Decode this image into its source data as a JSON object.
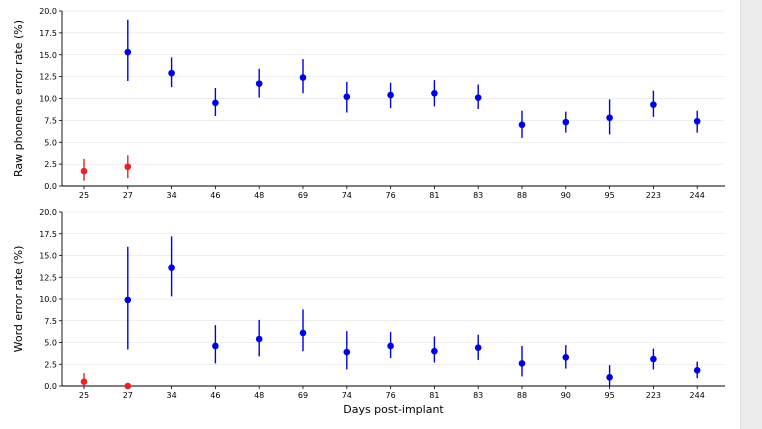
{
  "chart_data": [
    {
      "type": "scatter",
      "ylabel": "Raw phoneme error rate (%)",
      "xlabel": "",
      "ylim": [
        0,
        20
      ],
      "yticks": [
        "0.0",
        "2.5",
        "5.0",
        "7.5",
        "10.0",
        "12.5",
        "15.0",
        "17.5",
        "20.0"
      ],
      "grid": "horizontal",
      "categories": [
        "25",
        "27",
        "34",
        "46",
        "48",
        "69",
        "74",
        "76",
        "81",
        "83",
        "88",
        "90",
        "95",
        "223",
        "244"
      ],
      "series": [
        {
          "color": "#e8202a",
          "points": [
            {
              "x": "25",
              "y": 1.7,
              "low": 0.6,
              "high": 3.1
            },
            {
              "x": "27",
              "y": 2.2,
              "low": 0.9,
              "high": 3.5
            }
          ]
        },
        {
          "color": "#0000e6",
          "points": [
            {
              "x": "27",
              "y": 15.3,
              "low": 12.0,
              "high": 19.0
            },
            {
              "x": "34",
              "y": 12.9,
              "low": 11.3,
              "high": 14.7
            },
            {
              "x": "46",
              "y": 9.5,
              "low": 8.0,
              "high": 11.2
            },
            {
              "x": "48",
              "y": 11.7,
              "low": 10.1,
              "high": 13.4
            },
            {
              "x": "69",
              "y": 12.4,
              "low": 10.6,
              "high": 14.5
            },
            {
              "x": "74",
              "y": 10.2,
              "low": 8.4,
              "high": 11.9
            },
            {
              "x": "76",
              "y": 10.4,
              "low": 8.9,
              "high": 11.8
            },
            {
              "x": "81",
              "y": 10.6,
              "low": 9.1,
              "high": 12.1
            },
            {
              "x": "83",
              "y": 10.1,
              "low": 8.8,
              "high": 11.6
            },
            {
              "x": "88",
              "y": 7.0,
              "low": 5.5,
              "high": 8.6
            },
            {
              "x": "90",
              "y": 7.3,
              "low": 6.1,
              "high": 8.5
            },
            {
              "x": "95",
              "y": 7.8,
              "low": 5.9,
              "high": 9.9
            },
            {
              "x": "223",
              "y": 9.3,
              "low": 7.9,
              "high": 10.9
            },
            {
              "x": "244",
              "y": 7.4,
              "low": 6.1,
              "high": 8.6
            }
          ]
        }
      ]
    },
    {
      "type": "scatter",
      "ylabel": "Word error rate (%)",
      "xlabel": "Days post-implant",
      "ylim": [
        0,
        20
      ],
      "yticks": [
        "0.0",
        "2.5",
        "5.0",
        "7.5",
        "10.0",
        "12.5",
        "15.0",
        "17.5",
        "20.0"
      ],
      "grid": "horizontal",
      "categories": [
        "25",
        "27",
        "34",
        "46",
        "48",
        "69",
        "74",
        "76",
        "81",
        "83",
        "88",
        "90",
        "95",
        "223",
        "244"
      ],
      "series": [
        {
          "color": "#e8202a",
          "points": [
            {
              "x": "25",
              "y": 0.5,
              "low": 0.0,
              "high": 1.5
            },
            {
              "x": "27",
              "y": 0.0,
              "low": 0.0,
              "high": 0.0
            }
          ]
        },
        {
          "color": "#0000e6",
          "points": [
            {
              "x": "27",
              "y": 9.9,
              "low": 4.2,
              "high": 16.0
            },
            {
              "x": "34",
              "y": 13.6,
              "low": 10.3,
              "high": 17.2
            },
            {
              "x": "46",
              "y": 4.6,
              "low": 2.6,
              "high": 7.0
            },
            {
              "x": "48",
              "y": 5.4,
              "low": 3.4,
              "high": 7.6
            },
            {
              "x": "69",
              "y": 6.1,
              "low": 4.0,
              "high": 8.8
            },
            {
              "x": "74",
              "y": 3.9,
              "low": 1.9,
              "high": 6.3
            },
            {
              "x": "76",
              "y": 4.6,
              "low": 3.2,
              "high": 6.2
            },
            {
              "x": "81",
              "y": 4.0,
              "low": 2.7,
              "high": 5.7
            },
            {
              "x": "83",
              "y": 4.4,
              "low": 3.0,
              "high": 5.9
            },
            {
              "x": "88",
              "y": 2.6,
              "low": 1.1,
              "high": 4.6
            },
            {
              "x": "90",
              "y": 3.3,
              "low": 2.0,
              "high": 4.7
            },
            {
              "x": "95",
              "y": 1.0,
              "low": 0.0,
              "high": 2.4
            },
            {
              "x": "223",
              "y": 3.1,
              "low": 1.9,
              "high": 4.3
            },
            {
              "x": "244",
              "y": 1.8,
              "low": 0.9,
              "high": 2.8
            }
          ]
        }
      ]
    }
  ]
}
